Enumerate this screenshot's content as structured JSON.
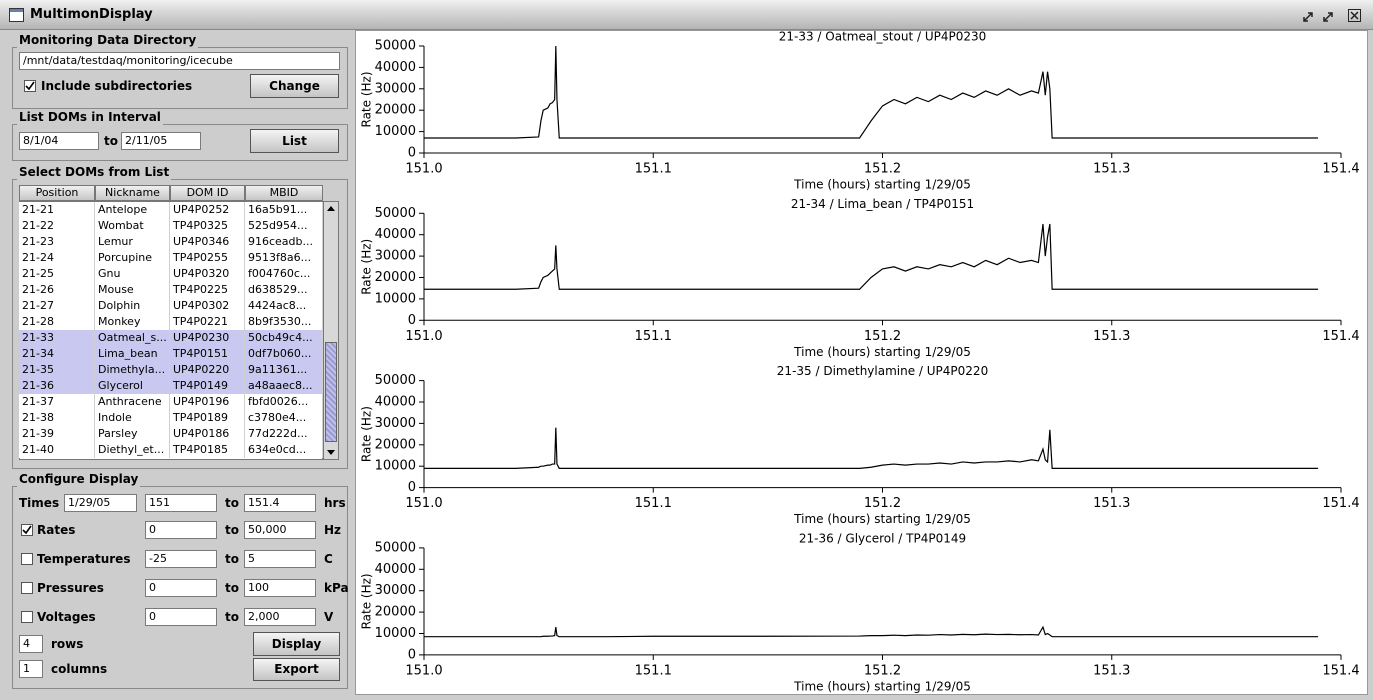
{
  "window": {
    "title": "MultimonDisplay"
  },
  "directory": {
    "title": "Monitoring Data Directory",
    "path": "/mnt/data/testdaq/monitoring/icecube",
    "include_label": "Include subdirectories",
    "include_checked": true,
    "button": "Change"
  },
  "interval": {
    "title": "List DOMs in Interval",
    "from": "8/1/04",
    "to_label": "to",
    "to": "2/11/05",
    "button": "List"
  },
  "dom_list": {
    "title": "Select DOMs from List",
    "columns": [
      "Position",
      "Nickname",
      "DOM ID",
      "MBID"
    ],
    "rows": [
      [
        "21-21",
        "Antelope",
        "UP4P0252",
        "16a5b91..."
      ],
      [
        "21-22",
        "Wombat",
        "TP4P0325",
        "525d954..."
      ],
      [
        "21-23",
        "Lemur",
        "UP4P0346",
        "916ceadb..."
      ],
      [
        "21-24",
        "Porcupine",
        "TP4P0255",
        "9513f8a6..."
      ],
      [
        "21-25",
        "Gnu",
        "UP4P0320",
        "f004760c..."
      ],
      [
        "21-26",
        "Mouse",
        "TP4P0225",
        "d638529..."
      ],
      [
        "21-27",
        "Dolphin",
        "UP4P0302",
        "4424ac8..."
      ],
      [
        "21-28",
        "Monkey",
        "TP4P0221",
        "8b9f3530..."
      ],
      [
        "21-33",
        "Oatmeal_s...",
        "UP4P0230",
        "50cb49c4..."
      ],
      [
        "21-34",
        "Lima_bean",
        "TP4P0151",
        "0df7b060..."
      ],
      [
        "21-35",
        "Dimethyla...",
        "UP4P0220",
        "9a11361..."
      ],
      [
        "21-36",
        "Glycerol",
        "TP4P0149",
        "a48aaec8..."
      ],
      [
        "21-37",
        "Anthracene",
        "UP4P0196",
        "fbfd0026..."
      ],
      [
        "21-38",
        "Indole",
        "TP4P0189",
        "c3780e4..."
      ],
      [
        "21-39",
        "Parsley",
        "UP4P0186",
        "77d222d..."
      ],
      [
        "21-40",
        "Diethyl_et...",
        "TP4P0185",
        "634e0cd..."
      ]
    ],
    "selected": [
      8,
      9,
      10,
      11
    ]
  },
  "configure": {
    "title": "Configure Display",
    "times": {
      "label": "Times",
      "date": "1/29/05",
      "from": "151",
      "to_label": "to",
      "to": "151.4",
      "unit": "hrs"
    },
    "ranges": [
      {
        "label": "Rates",
        "checked": true,
        "from": "0",
        "to_label": "to",
        "to": "50,000",
        "unit": "Hz"
      },
      {
        "label": "Temperatures",
        "checked": false,
        "from": "-25",
        "to_label": "to",
        "to": "5",
        "unit": "C"
      },
      {
        "label": "Pressures",
        "checked": false,
        "from": "0",
        "to_label": "to",
        "to": "100",
        "unit": "kPa"
      },
      {
        "label": "Voltages",
        "checked": false,
        "from": "0",
        "to_label": "to",
        "to": "2,000",
        "unit": "V"
      }
    ],
    "rows_value": "4",
    "rows_label": "rows",
    "columns_value": "1",
    "columns_label": "columns",
    "display_button": "Display",
    "export_button": "Export"
  },
  "chart_data": [
    {
      "type": "line",
      "title": "21-33 / Oatmeal_stout / UP4P0230",
      "xlabel": "Time (hours) starting 1/29/05",
      "ylabel": "Rate (Hz)",
      "color": "#000000",
      "x": [
        151.0,
        151.02,
        151.04,
        151.05,
        151.051,
        151.052,
        151.054,
        151.055,
        151.056,
        151.057,
        151.0575,
        151.058,
        151.059,
        151.08,
        151.1,
        151.15,
        151.19,
        151.195,
        151.2,
        151.205,
        151.21,
        151.215,
        151.22,
        151.225,
        151.23,
        151.235,
        151.24,
        151.245,
        151.25,
        151.255,
        151.26,
        151.265,
        151.268,
        151.27,
        151.271,
        151.272,
        151.273,
        151.274,
        151.28,
        151.3,
        151.35,
        151.39
      ],
      "values": [
        7000,
        7000,
        7000,
        7500,
        15000,
        20000,
        21000,
        23000,
        23500,
        25000,
        50000,
        25000,
        7000,
        7000,
        7000,
        7000,
        7000,
        15000,
        22000,
        25000,
        23000,
        26000,
        24000,
        27000,
        25000,
        28000,
        26000,
        29000,
        27000,
        30000,
        27000,
        29000,
        28000,
        38000,
        27000,
        38000,
        30000,
        7000,
        7000,
        7000,
        7000,
        7000
      ],
      "xlim": [
        151.0,
        151.4
      ],
      "ylim": [
        0,
        50000
      ],
      "xticks": [
        {
          "value": 151.0,
          "label": "151.0"
        },
        151.1,
        151.2,
        151.3,
        151.4
      ],
      "yticks": [
        0,
        10000,
        20000,
        30000,
        40000,
        50000
      ]
    },
    {
      "type": "line",
      "title": "21-34 / Lima_bean / TP4P0151",
      "xlabel": "Time (hours) starting 1/29/05",
      "ylabel": "Rate (Hz)",
      "color": "#000000",
      "x": [
        151.0,
        151.02,
        151.04,
        151.05,
        151.051,
        151.052,
        151.054,
        151.055,
        151.056,
        151.057,
        151.0575,
        151.058,
        151.059,
        151.08,
        151.1,
        151.15,
        151.19,
        151.195,
        151.2,
        151.205,
        151.21,
        151.215,
        151.22,
        151.225,
        151.23,
        151.235,
        151.24,
        151.245,
        151.25,
        151.255,
        151.26,
        151.265,
        151.268,
        151.27,
        151.271,
        151.272,
        151.273,
        151.274,
        151.28,
        151.3,
        151.35,
        151.39
      ],
      "values": [
        14500,
        14500,
        14500,
        15000,
        18000,
        20000,
        21000,
        22000,
        23000,
        24000,
        35000,
        24000,
        14500,
        14500,
        14500,
        14500,
        14500,
        20000,
        24000,
        25000,
        23000,
        25000,
        24000,
        26000,
        25000,
        27000,
        25000,
        28000,
        26000,
        29000,
        27000,
        28000,
        27000,
        45000,
        30000,
        39000,
        45000,
        14500,
        14500,
        14500,
        14500,
        14500
      ],
      "xlim": [
        151.0,
        151.4
      ],
      "ylim": [
        0,
        50000
      ],
      "xticks": [
        {
          "value": 151.0,
          "label": "151.0"
        },
        151.1,
        151.2,
        151.3,
        151.4
      ],
      "yticks": [
        0,
        10000,
        20000,
        30000,
        40000,
        50000
      ]
    },
    {
      "type": "line",
      "title": "21-35 / Dimethylamine / UP4P0220",
      "xlabel": "Time (hours) starting 1/29/05",
      "ylabel": "Rate (Hz)",
      "color": "#000000",
      "x": [
        151.0,
        151.02,
        151.04,
        151.05,
        151.051,
        151.052,
        151.054,
        151.055,
        151.056,
        151.057,
        151.0575,
        151.058,
        151.059,
        151.08,
        151.1,
        151.15,
        151.19,
        151.195,
        151.2,
        151.205,
        151.21,
        151.215,
        151.22,
        151.225,
        151.23,
        151.235,
        151.24,
        151.245,
        151.25,
        151.255,
        151.26,
        151.265,
        151.268,
        151.27,
        151.271,
        151.272,
        151.273,
        151.274,
        151.28,
        151.3,
        151.35,
        151.39
      ],
      "values": [
        9000,
        9000,
        9000,
        9500,
        10000,
        10000,
        10500,
        10500,
        11000,
        11000,
        28000,
        11000,
        9000,
        9000,
        9000,
        9000,
        9000,
        9500,
        10500,
        11000,
        10500,
        11000,
        11000,
        11500,
        11000,
        12000,
        11500,
        12000,
        12000,
        12500,
        12000,
        13000,
        12500,
        18000,
        13000,
        12000,
        27000,
        9000,
        9000,
        9000,
        9000,
        9000
      ],
      "xlim": [
        151.0,
        151.4
      ],
      "ylim": [
        0,
        50000
      ],
      "xticks": [
        {
          "value": 151.0,
          "label": "151.0"
        },
        151.1,
        151.2,
        151.3,
        151.4
      ],
      "yticks": [
        0,
        10000,
        20000,
        30000,
        40000,
        50000
      ]
    },
    {
      "type": "line",
      "title": "21-36 / Glycerol / TP4P0149",
      "xlabel": "Time (hours) starting 1/29/05",
      "ylabel": "Rate (Hz)",
      "color": "#000000",
      "x": [
        151.0,
        151.02,
        151.04,
        151.05,
        151.051,
        151.052,
        151.054,
        151.055,
        151.056,
        151.057,
        151.0575,
        151.058,
        151.059,
        151.08,
        151.1,
        151.15,
        151.19,
        151.195,
        151.2,
        151.205,
        151.21,
        151.215,
        151.22,
        151.225,
        151.23,
        151.235,
        151.24,
        151.245,
        151.25,
        151.255,
        151.26,
        151.265,
        151.268,
        151.27,
        151.271,
        151.272,
        151.273,
        151.274,
        151.28,
        151.3,
        151.35,
        151.39
      ],
      "values": [
        8500,
        8500,
        8500,
        8500,
        8500,
        8700,
        8700,
        8800,
        8800,
        9000,
        13000,
        9000,
        8500,
        8500,
        8700,
        8700,
        8800,
        9000,
        9000,
        9200,
        9000,
        9300,
        9200,
        9500,
        9300,
        9600,
        9400,
        9700,
        9500,
        9600,
        9400,
        9500,
        9300,
        13000,
        9500,
        10000,
        9300,
        8500,
        8500,
        8500,
        8500,
        8500
      ],
      "xlim": [
        151.0,
        151.4
      ],
      "ylim": [
        0,
        50000
      ],
      "xticks": [
        {
          "value": 151.0,
          "label": "151.0"
        },
        151.1,
        151.2,
        151.3,
        151.4
      ],
      "yticks": [
        0,
        10000,
        20000,
        30000,
        40000,
        50000
      ]
    }
  ]
}
